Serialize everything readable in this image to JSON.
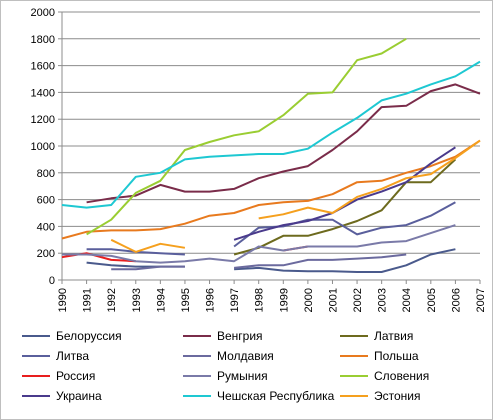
{
  "chart_data": {
    "type": "line",
    "title": "",
    "xlabel": "",
    "ylabel": "",
    "x": [
      1990,
      1991,
      1992,
      1993,
      1994,
      1995,
      1996,
      1997,
      1998,
      1999,
      2000,
      2001,
      2002,
      2003,
      2004,
      2005,
      2006,
      2007
    ],
    "x_tick_labels": [
      "1990",
      "1991",
      "1992",
      "1993",
      "1994",
      "1995",
      "1996",
      "1997",
      "1998",
      "1999",
      "2000",
      "2001",
      "2002",
      "2003",
      "2004",
      "2005",
      "2006",
      "2007"
    ],
    "ylim": [
      0,
      2000
    ],
    "y_ticks": [
      0,
      200,
      400,
      600,
      800,
      1000,
      1200,
      1400,
      1600,
      1800,
      2000
    ],
    "y_tick_labels": [
      "0",
      "200",
      "400",
      "600",
      "800",
      "1000",
      "1200",
      "1400",
      "1600",
      "1800",
      "2000"
    ],
    "grid": "horizontal",
    "legend_position": "bottom",
    "series": [
      {
        "name": "Белоруссия",
        "color": "#4a5a8c",
        "values": [
          null,
          130,
          110,
          100,
          100,
          100,
          null,
          80,
          90,
          70,
          65,
          65,
          60,
          60,
          110,
          190,
          230,
          null
        ]
      },
      {
        "name": "Венгрия",
        "color": "#7a2c4a",
        "values": [
          null,
          580,
          610,
          630,
          710,
          660,
          660,
          680,
          760,
          810,
          850,
          970,
          1110,
          1290,
          1300,
          1410,
          1460,
          1390
        ]
      },
      {
        "name": "Латвия",
        "color": "#6d6a1e",
        "values": [
          null,
          null,
          null,
          null,
          null,
          null,
          null,
          190,
          240,
          330,
          330,
          380,
          440,
          520,
          730,
          730,
          900,
          null
        ]
      },
      {
        "name": "Литва",
        "color": "#5a5f9c",
        "values": [
          null,
          230,
          230,
          210,
          200,
          190,
          null,
          250,
          390,
          400,
          450,
          450,
          340,
          390,
          410,
          480,
          580,
          null
        ]
      },
      {
        "name": "Молдавия",
        "color": "#6b6a9e",
        "values": [
          null,
          null,
          80,
          80,
          100,
          100,
          null,
          90,
          110,
          110,
          150,
          150,
          160,
          170,
          190,
          null,
          null,
          null
        ]
      },
      {
        "name": "Польша",
        "color": "#e87a1e",
        "values": [
          310,
          360,
          370,
          370,
          380,
          420,
          480,
          500,
          560,
          580,
          590,
          640,
          730,
          740,
          800,
          850,
          920,
          1040
        ]
      },
      {
        "name": "Россия",
        "color": "#e81e1e",
        "values": [
          170,
          200,
          150,
          140,
          null,
          null,
          null,
          null,
          null,
          220,
          250,
          null,
          null,
          null,
          null,
          null,
          null,
          null
        ]
      },
      {
        "name": "Румыния",
        "color": "#7a7aa8",
        "values": [
          190,
          190,
          180,
          140,
          130,
          140,
          160,
          140,
          250,
          220,
          250,
          250,
          250,
          280,
          290,
          350,
          410,
          null
        ]
      },
      {
        "name": "Словения",
        "color": "#9acd32",
        "values": [
          null,
          340,
          450,
          650,
          740,
          970,
          1030,
          1080,
          1110,
          1230,
          1390,
          1400,
          1640,
          1690,
          1800,
          null,
          null,
          null
        ]
      },
      {
        "name": "Украина",
        "color": "#4a3a8c",
        "values": [
          null,
          null,
          null,
          null,
          null,
          null,
          null,
          300,
          360,
          410,
          440,
          500,
          600,
          660,
          730,
          870,
          990,
          null
        ]
      },
      {
        "name": "Чешская Республика",
        "color": "#1ec8d2",
        "values": [
          560,
          540,
          560,
          770,
          800,
          900,
          920,
          930,
          940,
          940,
          980,
          1100,
          1210,
          1340,
          1390,
          1460,
          1520,
          1630
        ]
      },
      {
        "name": "Эстония",
        "color": "#f5a01e",
        "values": [
          null,
          null,
          300,
          210,
          270,
          240,
          null,
          null,
          460,
          490,
          540,
          500,
          620,
          680,
          760,
          790,
          910,
          1040
        ]
      }
    ]
  }
}
